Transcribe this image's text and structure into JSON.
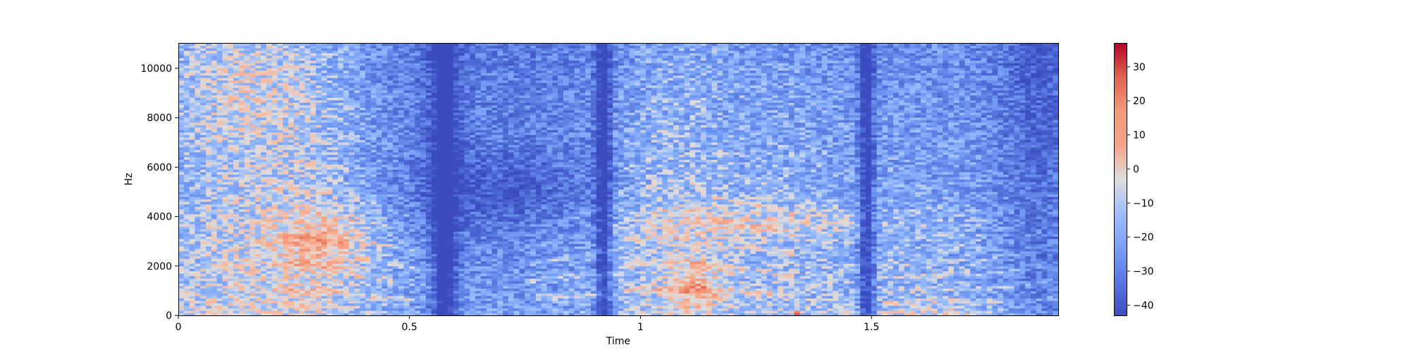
{
  "chart_data": {
    "type": "heatmap",
    "title": "",
    "xlabel": "Time",
    "ylabel": "Hz",
    "xlim": [
      0,
      1.904
    ],
    "ylim": [
      0,
      11025
    ],
    "xticks": [
      0,
      0.5,
      1,
      1.5
    ],
    "xtick_labels": [
      "0",
      "0.5",
      "1",
      "1.5"
    ],
    "yticks": [
      0,
      2000,
      4000,
      6000,
      8000,
      10000
    ],
    "ytick_labels": [
      "0",
      "2000",
      "4000",
      "6000",
      "8000",
      "10000"
    ],
    "colormap": "coolwarm",
    "colorbar": {
      "range": [
        -43,
        37
      ],
      "ticks": [
        -40,
        -30,
        -20,
        -10,
        0,
        10,
        20,
        30
      ],
      "tick_labels": [
        "−40",
        "−30",
        "−20",
        "−10",
        "0",
        "10",
        "20",
        "30"
      ]
    },
    "grid": false,
    "approx_regions_db": [
      {
        "t": [
          0.0,
          0.24
        ],
        "f": [
          0,
          11025
        ],
        "db": 5
      },
      {
        "t": [
          0.24,
          0.42
        ],
        "f": [
          2000,
          4000
        ],
        "db": 15
      },
      {
        "t": [
          0.55,
          0.6
        ],
        "f": [
          0,
          11025
        ],
        "db": -38
      },
      {
        "t": [
          0.91,
          0.93
        ],
        "f": [
          0,
          11025
        ],
        "db": -42
      },
      {
        "t": [
          1.1,
          1.17
        ],
        "f": [
          800,
          2000
        ],
        "db": 25
      },
      {
        "t": [
          1.15,
          1.45
        ],
        "f": [
          3000,
          4300
        ],
        "db": 12
      },
      {
        "t": [
          1.48,
          1.5
        ],
        "f": [
          0,
          11025
        ],
        "db": -42
      },
      {
        "t": [
          1.6,
          1.75
        ],
        "f": [
          0,
          300
        ],
        "db": 25
      }
    ]
  }
}
